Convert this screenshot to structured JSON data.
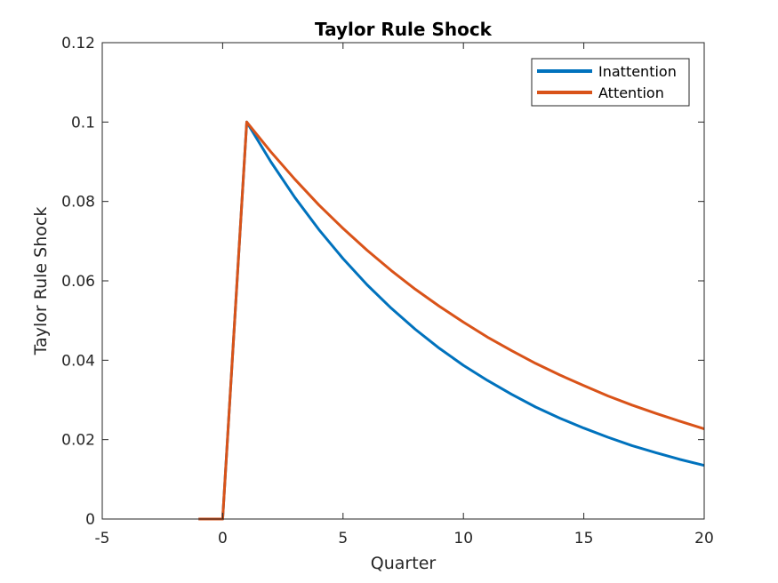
{
  "chart_data": {
    "type": "line",
    "title": "Taylor Rule Shock",
    "xlabel": "Quarter",
    "ylabel": "Taylor Rule Shock",
    "xlim": [
      -5,
      20
    ],
    "ylim": [
      0,
      0.12
    ],
    "xticks": [
      -5,
      0,
      5,
      10,
      15,
      20
    ],
    "yticks": [
      0,
      0.02,
      0.04,
      0.06,
      0.08,
      0.1,
      0.12
    ],
    "xtick_labels": [
      "-5",
      "0",
      "5",
      "10",
      "15",
      "20"
    ],
    "ytick_labels": [
      "0",
      "0.02",
      "0.04",
      "0.06",
      "0.08",
      "0.1",
      "0.12"
    ],
    "legend_position": "top-right",
    "grid": false,
    "series": [
      {
        "name": "Inattention",
        "color": "#0072BD",
        "x": [
          -1,
          0,
          1,
          2,
          3,
          4,
          5,
          6,
          7,
          8,
          9,
          10,
          11,
          12,
          13,
          14,
          15,
          16,
          17,
          18,
          19,
          20
        ],
        "values": [
          0,
          0,
          0.1,
          0.09,
          0.081,
          0.0729,
          0.0656,
          0.059,
          0.0531,
          0.0478,
          0.043,
          0.0387,
          0.0349,
          0.0314,
          0.0282,
          0.0254,
          0.0229,
          0.0206,
          0.0185,
          0.0167,
          0.015,
          0.0135
        ]
      },
      {
        "name": "Attention",
        "color": "#D95319",
        "x": [
          -1,
          0,
          1,
          2,
          3,
          4,
          5,
          6,
          7,
          8,
          9,
          10,
          11,
          12,
          13,
          14,
          15,
          16,
          17,
          18,
          19,
          20
        ],
        "values": [
          0,
          0,
          0.1,
          0.0925,
          0.0856,
          0.0791,
          0.0732,
          0.0677,
          0.0626,
          0.0579,
          0.0536,
          0.0496,
          0.0458,
          0.0424,
          0.0392,
          0.0363,
          0.0336,
          0.031,
          0.0287,
          0.0266,
          0.0246,
          0.0227
        ]
      }
    ]
  }
}
